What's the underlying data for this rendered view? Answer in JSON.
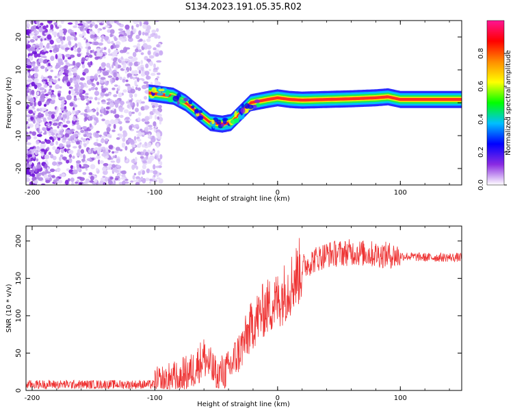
{
  "figure_title": "S134.2023.191.05.35.R02",
  "chart_data": [
    {
      "type": "heatmap",
      "title": "S134.2023.191.05.35.R02",
      "xlabel": "Height of straight line (km)",
      "ylabel": "Frequency (Hz)",
      "xlim": [
        -205,
        150
      ],
      "ylim": [
        -25,
        25
      ],
      "x_ticks": [
        -200,
        -100,
        0,
        100
      ],
      "y_ticks": [
        -20,
        -10,
        0,
        10,
        20
      ],
      "colorbar": {
        "label": "Normalized spectral amplitude",
        "range": [
          0,
          1
        ],
        "ticks": [
          0.0,
          0.2,
          0.4,
          0.6,
          0.8
        ],
        "colors": [
          "#ffffff",
          "#8a2be2",
          "#0000ff",
          "#00bfff",
          "#00ff00",
          "#ffff00",
          "#ff8c00",
          "#ff0000",
          "#ff1493"
        ]
      },
      "noise_region_x": [
        -205,
        -95
      ],
      "ridge": {
        "x": [
          -105,
          -95,
          -85,
          -75,
          -65,
          -55,
          -45,
          -38,
          -30,
          -22,
          -15,
          -8,
          0,
          10,
          20,
          40,
          60,
          80,
          90,
          100,
          120,
          150
        ],
        "y": [
          3,
          2.5,
          2,
          0,
          -3,
          -6,
          -6.5,
          -6,
          -3,
          0,
          0.5,
          1,
          1.5,
          1,
          0.8,
          1,
          1.2,
          1.5,
          1.8,
          1,
          1,
          1
        ]
      },
      "grid": false
    },
    {
      "type": "line",
      "xlabel": "Height of straight line (km)",
      "ylabel": "SNR (10 * v/v)",
      "xlim": [
        -205,
        150
      ],
      "ylim": [
        0,
        220
      ],
      "x_ticks": [
        -200,
        -100,
        0,
        100
      ],
      "y_ticks": [
        0,
        50,
        100,
        150,
        200
      ],
      "line_color": "#ee3333",
      "trend": {
        "x": [
          -205,
          -100,
          -85,
          -70,
          -60,
          -50,
          -40,
          -30,
          -20,
          -10,
          0,
          10,
          20,
          30,
          40,
          60,
          80,
          100,
          120,
          150
        ],
        "y": [
          8,
          8,
          15,
          25,
          45,
          20,
          28,
          55,
          90,
          110,
          120,
          140,
          165,
          175,
          182,
          185,
          182,
          180,
          178,
          178
        ]
      },
      "grid": false
    }
  ]
}
